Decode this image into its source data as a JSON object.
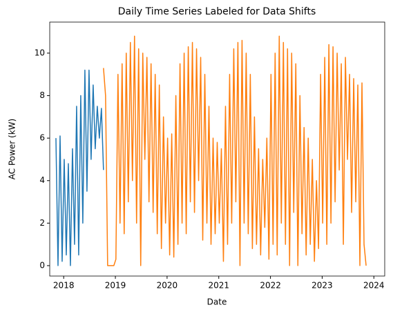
{
  "chart_data": {
    "type": "line",
    "title": "Daily Time Series Labeled for Data Shifts",
    "x_label": "Date",
    "y_label": "AC Power (kW)",
    "xlim": [
      2017.73,
      2024.21
    ],
    "xticks": [
      2018,
      2019,
      2020,
      2021,
      2022,
      2023,
      2024
    ],
    "ylim": [
      -0.49,
      11.46
    ],
    "yticks": [
      0,
      2,
      4,
      6,
      8,
      10
    ],
    "series": [
      {
        "color": "#1f77b4",
        "x": [
          2017.85,
          2017.89,
          2017.93,
          2017.97,
          2018.01,
          2018.05,
          2018.09,
          2018.13,
          2018.17,
          2018.21,
          2018.25,
          2018.29,
          2018.33,
          2018.37,
          2018.41,
          2018.45,
          2018.49,
          2018.53,
          2018.57,
          2018.61,
          2018.65,
          2018.69,
          2018.73,
          2018.77
        ],
        "values": [
          6,
          0,
          6.1,
          0.2,
          5,
          0.5,
          4.8,
          0,
          5.5,
          1,
          7.5,
          0.5,
          8,
          2,
          9.2,
          3.5,
          9.2,
          5,
          8.5,
          5.5,
          7.5,
          6,
          7.4,
          4.5
        ]
      },
      {
        "color": "#ff7f0e",
        "x": [
          2018.77,
          2018.81,
          2018.85,
          2018.89,
          2018.93,
          2018.97,
          2019.01,
          2019.05,
          2019.09,
          2019.13,
          2019.17,
          2019.21,
          2019.25,
          2019.29,
          2019.33,
          2019.37,
          2019.41,
          2019.45,
          2019.49,
          2019.53,
          2019.57,
          2019.61,
          2019.65,
          2019.69,
          2019.73,
          2019.77,
          2019.81,
          2019.85,
          2019.89,
          2019.93,
          2019.97,
          2020.01,
          2020.05,
          2020.09,
          2020.13,
          2020.17,
          2020.21,
          2020.25,
          2020.29,
          2020.33,
          2020.37,
          2020.41,
          2020.45,
          2020.49,
          2020.53,
          2020.57,
          2020.61,
          2020.65,
          2020.69,
          2020.73,
          2020.77,
          2020.81,
          2020.85,
          2020.89,
          2020.93,
          2020.97,
          2021.01,
          2021.05,
          2021.09,
          2021.13,
          2021.17,
          2021.21,
          2021.25,
          2021.29,
          2021.33,
          2021.37,
          2021.41,
          2021.45,
          2021.49,
          2021.53,
          2021.57,
          2021.61,
          2021.65,
          2021.69,
          2021.73,
          2021.77,
          2021.81,
          2021.85,
          2021.89,
          2021.93,
          2021.97,
          2022.01,
          2022.05,
          2022.09,
          2022.13,
          2022.17,
          2022.21,
          2022.25,
          2022.29,
          2022.33,
          2022.37,
          2022.41,
          2022.45,
          2022.49,
          2022.53,
          2022.57,
          2022.61,
          2022.65,
          2022.69,
          2022.73,
          2022.77,
          2022.81,
          2022.85,
          2022.89,
          2022.93,
          2022.97,
          2023.01,
          2023.05,
          2023.09,
          2023.13,
          2023.17,
          2023.21,
          2023.25,
          2023.29,
          2023.33,
          2023.37,
          2023.41,
          2023.45,
          2023.49,
          2023.53,
          2023.57,
          2023.61,
          2023.65,
          2023.69,
          2023.73,
          2023.77,
          2023.81,
          2023.85
        ],
        "values": [
          9.3,
          8,
          0,
          0,
          0,
          0,
          0.3,
          9,
          2,
          9.5,
          1.5,
          10,
          3,
          10.5,
          4,
          10.8,
          2,
          10.2,
          0,
          10,
          5,
          9.8,
          3,
          9.5,
          2.5,
          9,
          1.5,
          8.5,
          0.8,
          7,
          2,
          6,
          0.5,
          6.2,
          0.4,
          8,
          1,
          9.5,
          2,
          10,
          1.5,
          10.3,
          3,
          10.5,
          2.5,
          10.2,
          4,
          9.8,
          1.2,
          9,
          2,
          7.5,
          1,
          6,
          1.5,
          5.8,
          2,
          5.5,
          0.2,
          7.5,
          1,
          9,
          2,
          10.2,
          3,
          10.5,
          0,
          10.6,
          2,
          10,
          1.5,
          9,
          0.8,
          7,
          1,
          5.5,
          0.5,
          5,
          1.8,
          6,
          0.3,
          9,
          1,
          10,
          0.5,
          10.8,
          2,
          10.5,
          1,
          10.2,
          0,
          10,
          2.5,
          9.5,
          0,
          8,
          1.5,
          6.5,
          0.5,
          6,
          1,
          5,
          0.2,
          4,
          0.8,
          9,
          2,
          9.8,
          1,
          10.4,
          2,
          10.3,
          3,
          10,
          4.5,
          9.5,
          1,
          9.8,
          5,
          9,
          2.5,
          8.8,
          3,
          8.5,
          0,
          8.6,
          1,
          0
        ]
      }
    ]
  }
}
